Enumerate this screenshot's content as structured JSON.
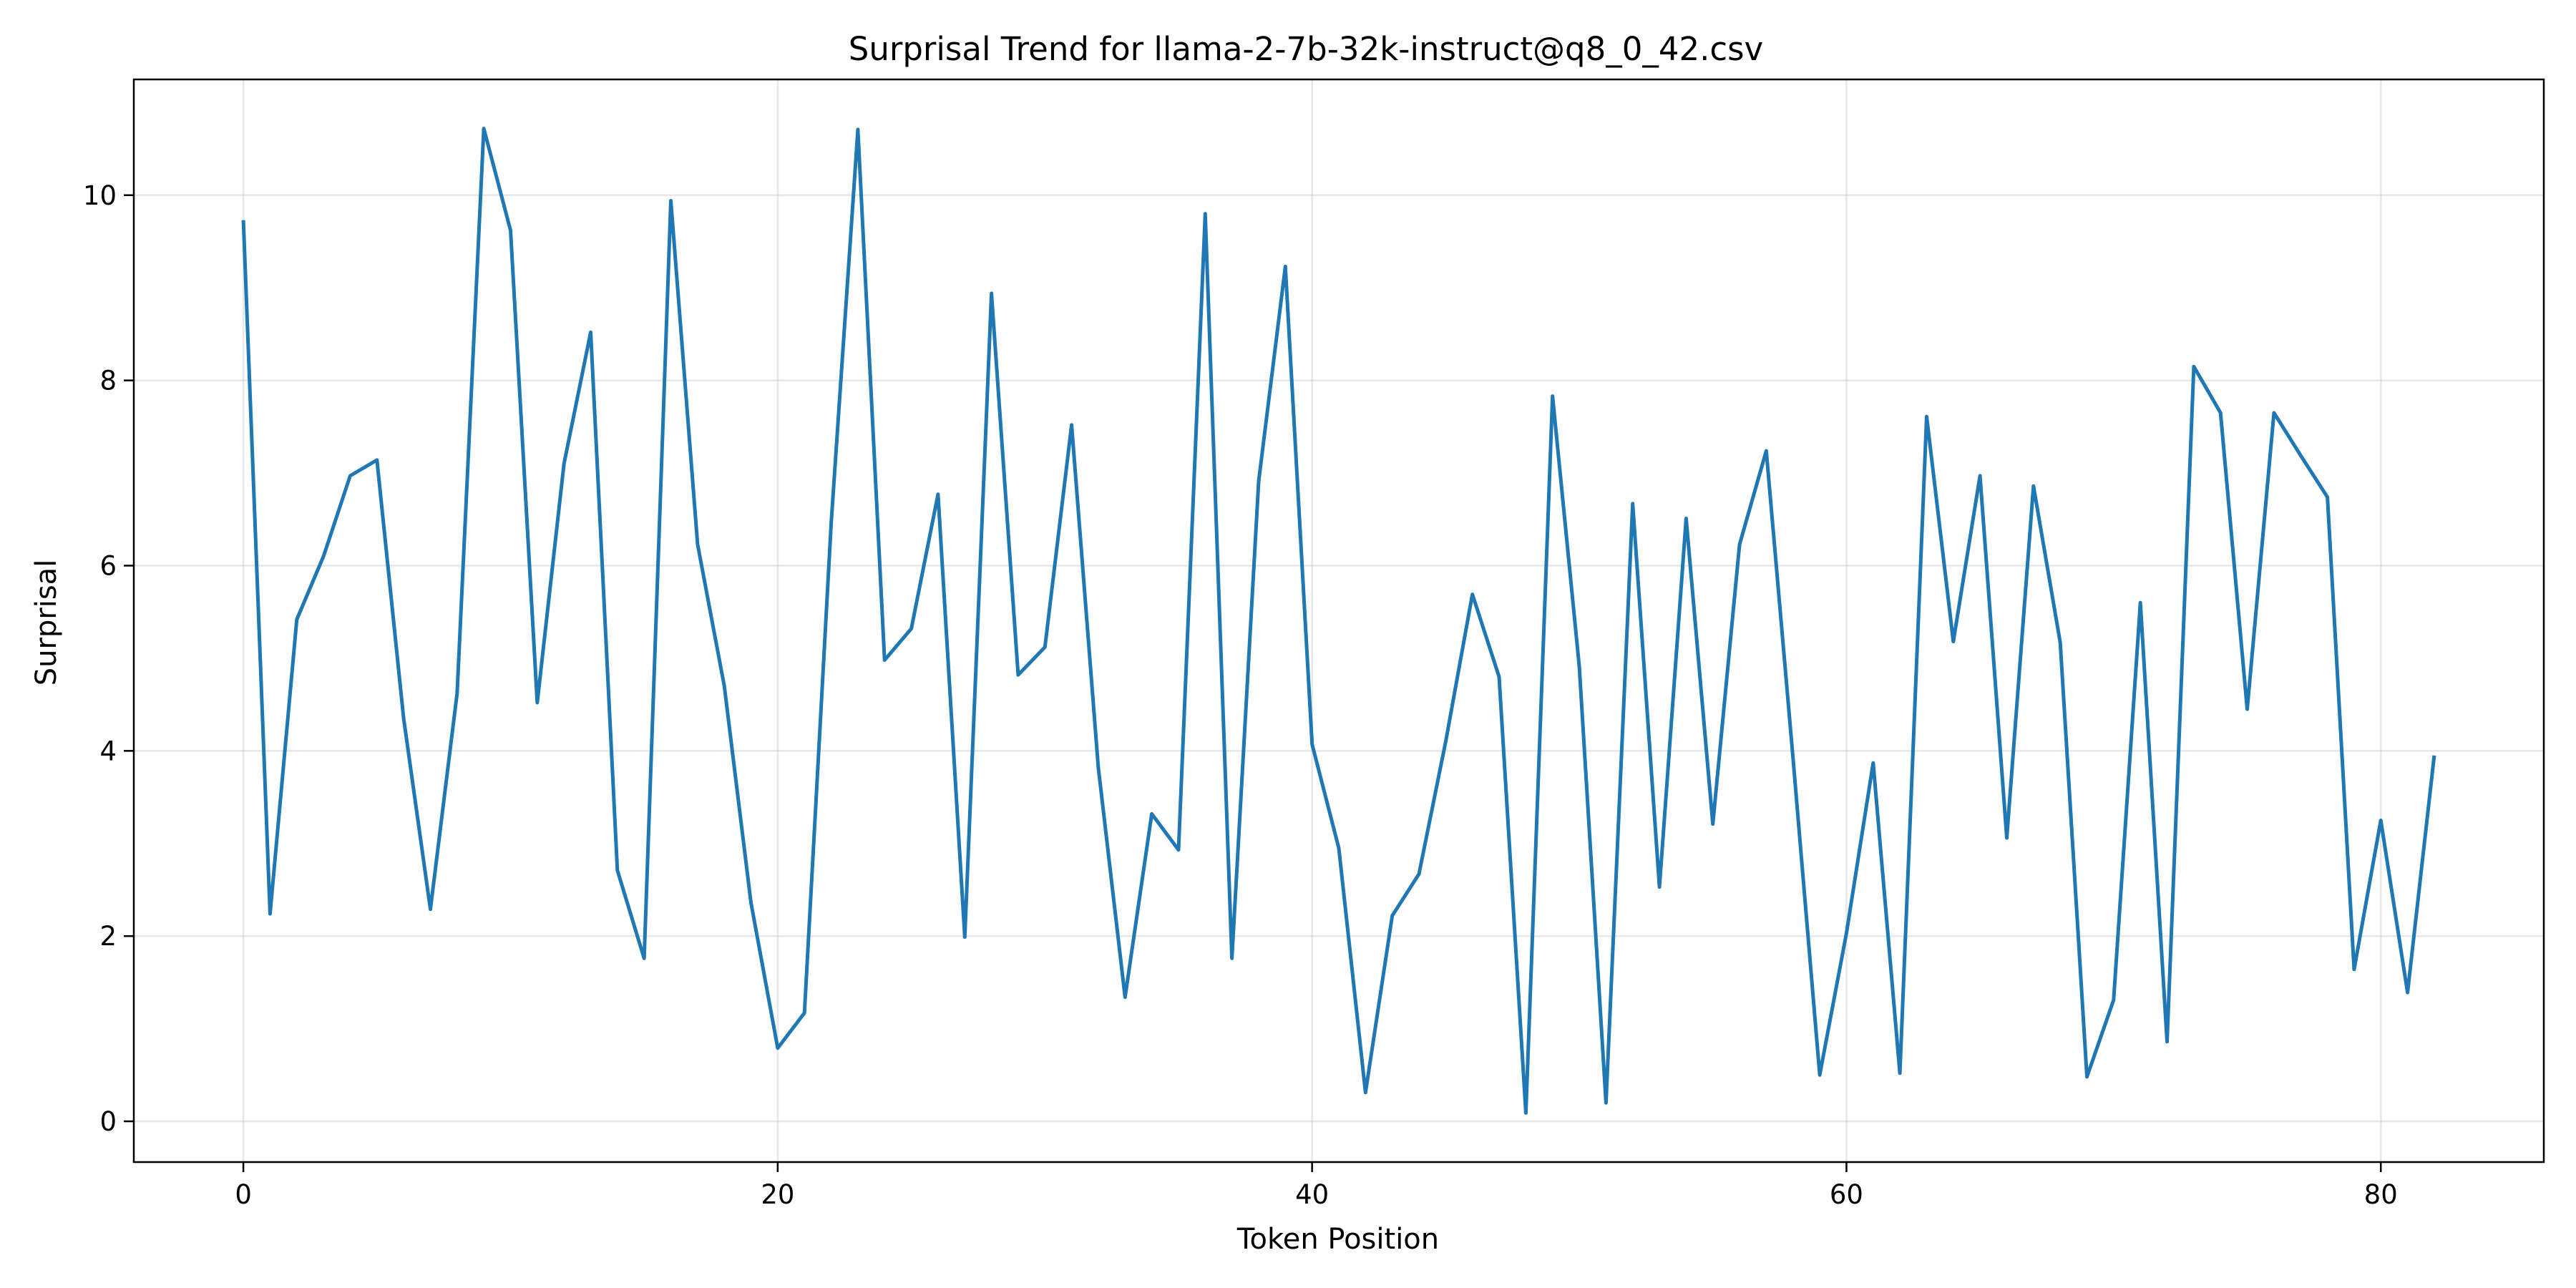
{
  "chart_data": {
    "type": "line",
    "title": "Surprisal Trend for llama-2-7b-32k-instruct@q8_0_42.csv",
    "xlabel": "Token Position",
    "ylabel": "Surprisal",
    "xlim": [
      -4.1,
      86.1
    ],
    "ylim": [
      -0.44,
      11.25
    ],
    "xticks": [
      0,
      20,
      40,
      60,
      80
    ],
    "yticks": [
      0,
      2,
      4,
      6,
      8,
      10
    ],
    "grid": true,
    "legend": "none",
    "series": [
      {
        "color": "#1f77b4",
        "x": [
          0,
          1,
          2,
          3,
          4,
          5,
          6,
          7,
          8,
          9,
          10,
          11,
          12,
          13,
          14,
          15,
          16,
          17,
          18,
          19,
          20,
          21,
          22,
          23,
          24,
          25,
          26,
          27,
          28,
          29,
          30,
          31,
          32,
          33,
          34,
          35,
          36,
          37,
          38,
          39,
          40,
          41,
          42,
          43,
          44,
          45,
          46,
          47,
          48,
          49,
          50,
          51,
          52,
          53,
          54,
          55,
          56,
          57,
          58,
          59,
          60,
          61,
          62,
          63,
          64,
          65,
          66,
          67,
          68,
          69,
          70,
          71,
          72,
          73,
          74,
          75,
          76,
          77,
          78,
          79,
          80,
          81,
          82
        ],
        "values": [
          9.73,
          2.24,
          5.42,
          6.1,
          6.97,
          7.14,
          4.35,
          2.29,
          4.62,
          10.72,
          9.62,
          4.52,
          7.1,
          8.52,
          2.71,
          1.76,
          9.94,
          6.23,
          4.7,
          2.36,
          0.79,
          1.17,
          6.46,
          10.71,
          4.98,
          5.32,
          6.77,
          1.99,
          8.94,
          4.82,
          5.12,
          7.52,
          3.82,
          1.34,
          3.32,
          2.93,
          9.8,
          1.76,
          6.91,
          9.23,
          4.07,
          2.95,
          0.31,
          2.22,
          2.67,
          4.1,
          5.69,
          4.8,
          0.09,
          7.83,
          4.91,
          0.2,
          6.67,
          2.53,
          6.51,
          3.21,
          6.23,
          7.24,
          3.92,
          0.5,
          2.03,
          3.87,
          0.52,
          7.61,
          5.18,
          6.97,
          3.06,
          6.86,
          5.17,
          0.48,
          1.31,
          5.6,
          0.86,
          8.15,
          7.65,
          4.45,
          7.65,
          7.19,
          6.74,
          1.64,
          3.25,
          1.39,
          3.95
        ]
      }
    ]
  }
}
